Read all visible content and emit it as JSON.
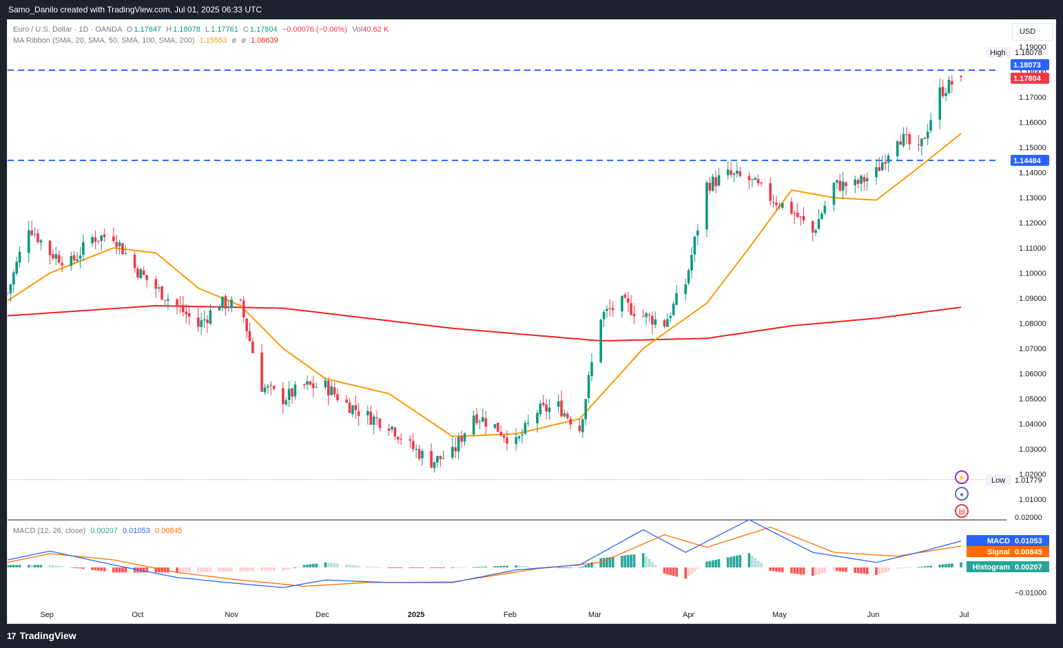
{
  "header": {
    "text": "Samo_Danilo created with TradingView.com, Jul 01, 2025 06:33 UTC"
  },
  "footer": {
    "brand": "TradingView",
    "logo_mark": "17"
  },
  "currency_button": "USD",
  "legend": {
    "symbol": "Euro / U.S. Dollar · 1D · OANDA",
    "o_label": "O",
    "o": "1.17847",
    "h_label": "H",
    "h": "1.18078",
    "l_label": "L",
    "l": "1.17761",
    "c_label": "C",
    "c": "1.17804",
    "change": "−0.00076 (−0.06%)",
    "vol_label": "Vol",
    "vol": "40.62 K",
    "ma_title": "MA Ribbon (SMA, 20, SMA, 50, SMA, 100, SMA, 200)",
    "ma1": "1.15553",
    "ma_sep1": "ø",
    "ma_sep2": "ø",
    "ma4": "1.08639",
    "macd_title": "MACD (12, 26, close)",
    "macd_hist": "0.00207",
    "macd_line": "0.01053",
    "macd_signal": "0.00845"
  },
  "price_axis_labels": [
    "1.19000",
    "1.18000",
    "1.17000",
    "1.16000",
    "1.15000",
    "1.14000",
    "1.13000",
    "1.12000",
    "1.11000",
    "1.10000",
    "1.09000",
    "1.08000",
    "1.07000",
    "1.06000",
    "1.05000",
    "1.04000",
    "1.03000",
    "1.02000",
    "1.01000"
  ],
  "macd_axis_labels": [
    "0.02000",
    "0.01000",
    "0.00000",
    "−0.01000"
  ],
  "time_axis_labels": [
    "Sep",
    "Oct",
    "Nov",
    "Dec",
    "2025",
    "Feb",
    "Mar",
    "Apr",
    "May",
    "Jun",
    "Jul"
  ],
  "markers": {
    "high_label": "High",
    "high_value": "1.18078",
    "resistance_value": "1.18073",
    "last_value": "1.17804",
    "support_value": "1.14484",
    "low_label": "Low",
    "low_value": "1.01779",
    "macd_label": "MACD",
    "macd_value": "0.01053",
    "signal_label": "Signal",
    "signal_value": "0.00845",
    "hist_label": "Histogram",
    "hist_value": "0.00207"
  },
  "colors": {
    "up": "#089981",
    "down": "#f23645",
    "ma20": "#ff9800",
    "ma200": "#f01e1e",
    "level_line": "#2962ff",
    "macd_line": "#2962ff",
    "signal_line": "#ff6d00",
    "hist_up_strong": "#26a69a",
    "hist_up_weak": "#b2dfdb",
    "hist_down_strong": "#ff5252",
    "hist_down_weak": "#ffcdd2"
  },
  "icons": [
    "lightning-icon",
    "economic-event-icon",
    "us-flag-icon"
  ],
  "chart_data": [
    {
      "type": "candlestick",
      "title": "Euro / U.S. Dollar · 1D · OANDA",
      "ylim": [
        1.01,
        1.19
      ],
      "grid": false,
      "levels": {
        "resistance": 1.18073,
        "support": 1.14484,
        "high": 1.18078,
        "low": 1.01779,
        "last_close": 1.17804
      },
      "ohlc_last": {
        "open": 1.17847,
        "high": 1.18078,
        "low": 1.17761,
        "close": 1.17804
      },
      "x_ticks": [
        "Sep",
        "Oct",
        "Nov",
        "Dec",
        "2025",
        "Feb",
        "Mar",
        "Apr",
        "May",
        "Jun",
        "Jul"
      ],
      "close_anchors": [
        [
          "2024-08-19",
          1.092
        ],
        [
          "2024-08-26",
          1.119
        ],
        [
          "2024-09-02",
          1.108
        ],
        [
          "2024-09-09",
          1.104
        ],
        [
          "2024-09-16",
          1.114
        ],
        [
          "2024-09-23",
          1.115
        ],
        [
          "2024-09-30",
          1.102
        ],
        [
          "2024-10-07",
          1.094
        ],
        [
          "2024-10-14",
          1.087
        ],
        [
          "2024-10-21",
          1.079
        ],
        [
          "2024-10-28",
          1.088
        ],
        [
          "2024-11-04",
          1.087
        ],
        [
          "2024-11-11",
          1.055
        ],
        [
          "2024-11-18",
          1.05
        ],
        [
          "2024-11-25",
          1.055
        ],
        [
          "2024-12-02",
          1.055
        ],
        [
          "2024-12-09",
          1.048
        ],
        [
          "2024-12-16",
          1.043
        ],
        [
          "2024-12-23",
          1.04
        ],
        [
          "2024-12-30",
          1.031
        ],
        [
          "2025-01-06",
          1.025
        ],
        [
          "2025-01-13",
          1.028
        ],
        [
          "2025-01-20",
          1.044
        ],
        [
          "2025-01-27",
          1.039
        ],
        [
          "2025-02-03",
          1.032
        ],
        [
          "2025-02-10",
          1.045
        ],
        [
          "2025-02-17",
          1.047
        ],
        [
          "2025-02-24",
          1.038
        ],
        [
          "2025-03-03",
          1.083
        ],
        [
          "2025-03-10",
          1.088
        ],
        [
          "2025-03-17",
          1.083
        ],
        [
          "2025-03-24",
          1.08
        ],
        [
          "2025-03-31",
          1.096
        ],
        [
          "2025-04-07",
          1.135
        ],
        [
          "2025-04-14",
          1.139
        ],
        [
          "2025-04-21",
          1.137
        ],
        [
          "2025-04-28",
          1.13
        ],
        [
          "2025-05-05",
          1.125
        ],
        [
          "2025-05-12",
          1.116
        ],
        [
          "2025-05-19",
          1.135
        ],
        [
          "2025-05-26",
          1.135
        ],
        [
          "2025-06-02",
          1.14
        ],
        [
          "2025-06-09",
          1.155
        ],
        [
          "2025-06-16",
          1.148
        ],
        [
          "2025-06-23",
          1.172
        ],
        [
          "2025-06-30",
          1.178
        ]
      ],
      "ma20_anchors": [
        [
          "2024-08-19",
          1.089
        ],
        [
          "2024-09-02",
          1.1
        ],
        [
          "2024-09-23",
          1.11
        ],
        [
          "2024-10-07",
          1.108
        ],
        [
          "2024-10-21",
          1.094
        ],
        [
          "2024-11-04",
          1.087
        ],
        [
          "2024-11-18",
          1.07
        ],
        [
          "2024-12-02",
          1.058
        ],
        [
          "2024-12-23",
          1.052
        ],
        [
          "2025-01-13",
          1.035
        ],
        [
          "2025-02-03",
          1.036
        ],
        [
          "2025-02-24",
          1.042
        ],
        [
          "2025-03-17",
          1.07
        ],
        [
          "2025-04-07",
          1.088
        ],
        [
          "2025-04-21",
          1.11
        ],
        [
          "2025-05-05",
          1.133
        ],
        [
          "2025-05-19",
          1.13
        ],
        [
          "2025-06-02",
          1.129
        ],
        [
          "2025-06-16",
          1.142
        ],
        [
          "2025-06-30",
          1.1555
        ]
      ],
      "ma200_anchors": [
        [
          "2024-08-19",
          1.083
        ],
        [
          "2024-10-07",
          1.087
        ],
        [
          "2024-11-18",
          1.086
        ],
        [
          "2025-01-13",
          1.078
        ],
        [
          "2025-03-03",
          1.073
        ],
        [
          "2025-04-07",
          1.074
        ],
        [
          "2025-05-05",
          1.079
        ],
        [
          "2025-06-02",
          1.082
        ],
        [
          "2025-06-30",
          1.0864
        ]
      ]
    },
    {
      "type": "macd",
      "title": "MACD (12, 26, close)",
      "ylim": [
        -0.012,
        0.021
      ],
      "series": [
        {
          "name": "MACD",
          "last": 0.01053
        },
        {
          "name": "Signal",
          "last": 0.00845
        },
        {
          "name": "Histogram",
          "last": 0.00207
        }
      ],
      "macd_anchors": [
        [
          "2024-08-19",
          0.003
        ],
        [
          "2024-09-02",
          0.0065
        ],
        [
          "2024-09-23",
          0.001
        ],
        [
          "2024-10-14",
          -0.004
        ],
        [
          "2024-11-04",
          -0.0065
        ],
        [
          "2024-11-18",
          -0.008
        ],
        [
          "2024-12-02",
          -0.005
        ],
        [
          "2024-12-23",
          -0.006
        ],
        [
          "2025-01-13",
          -0.006
        ],
        [
          "2025-02-03",
          -0.001
        ],
        [
          "2025-02-24",
          0.001
        ],
        [
          "2025-03-17",
          0.015
        ],
        [
          "2025-03-31",
          0.006
        ],
        [
          "2025-04-21",
          0.019
        ],
        [
          "2025-05-12",
          0.006
        ],
        [
          "2025-06-02",
          0.002
        ],
        [
          "2025-06-16",
          0.006
        ],
        [
          "2025-06-30",
          0.0105
        ]
      ],
      "signal_anchors": [
        [
          "2024-08-19",
          0.002
        ],
        [
          "2024-09-02",
          0.0055
        ],
        [
          "2024-09-23",
          0.003
        ],
        [
          "2024-10-14",
          -0.002
        ],
        [
          "2024-11-04",
          -0.005
        ],
        [
          "2024-11-25",
          -0.0075
        ],
        [
          "2024-12-16",
          -0.006
        ],
        [
          "2025-01-13",
          -0.0058
        ],
        [
          "2025-02-10",
          -0.0005
        ],
        [
          "2025-03-03",
          0.002
        ],
        [
          "2025-03-24",
          0.013
        ],
        [
          "2025-04-07",
          0.008
        ],
        [
          "2025-04-28",
          0.016
        ],
        [
          "2025-05-19",
          0.006
        ],
        [
          "2025-06-09",
          0.0045
        ],
        [
          "2025-06-30",
          0.0085
        ]
      ]
    }
  ]
}
